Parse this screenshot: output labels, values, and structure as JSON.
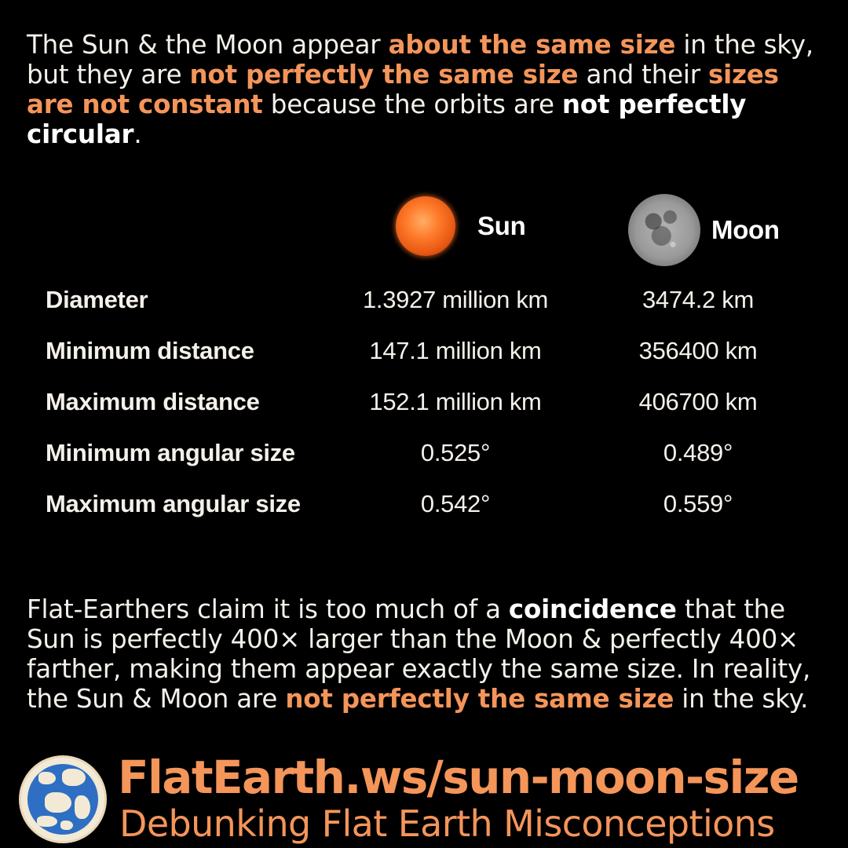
{
  "intro": {
    "segments": [
      {
        "text": "The Sun & the Moon appear ",
        "style": "normal"
      },
      {
        "text": "about the same size",
        "style": "orange"
      },
      {
        "text": " in the sky, but they are ",
        "style": "normal"
      },
      {
        "text": "not perfectly the same size",
        "style": "orange"
      },
      {
        "text": " and their ",
        "style": "normal"
      },
      {
        "text": "sizes are not constant",
        "style": "orange"
      },
      {
        "text": " because the orbits are ",
        "style": "normal"
      },
      {
        "text": "not perfectly circular",
        "style": "white"
      },
      {
        "text": ".",
        "style": "normal"
      }
    ]
  },
  "table": {
    "columns": {
      "sun": {
        "label": "Sun",
        "icon": "sun-icon"
      },
      "moon": {
        "label": "Moon",
        "icon": "moon-icon"
      }
    },
    "rows": [
      {
        "label": "Diameter",
        "sun": "1.3927 million km",
        "moon": "3474.2 km"
      },
      {
        "label": "Minimum distance",
        "sun": "147.1 million km",
        "moon": "356400 km"
      },
      {
        "label": "Maximum distance",
        "sun": "152.1 million km",
        "moon": "406700 km"
      },
      {
        "label": "Minimum angular size",
        "sun": "0.525°",
        "moon": "0.489°"
      },
      {
        "label": "Maximum angular size",
        "sun": "0.542°",
        "moon": "0.559°"
      }
    ]
  },
  "outro": {
    "segments": [
      {
        "text": "Flat-Earthers claim it is too much of a ",
        "style": "normal"
      },
      {
        "text": "coincidence",
        "style": "white"
      },
      {
        "text": " that the Sun is perfectly 400× larger than the Moon & perfectly 400× farther, making them appear exactly the same size. In reality, the Sun & Moon are ",
        "style": "normal"
      },
      {
        "text": "not perfectly the same size",
        "style": "orange"
      },
      {
        "text": " in the sky.",
        "style": "normal"
      }
    ]
  },
  "footer": {
    "url": "FlatEarth.ws/sun-moon-size",
    "tagline": "Debunking Flat Earth Misconceptions",
    "logo_icon": "globe-logo-icon"
  },
  "colors": {
    "background": "#000000",
    "accent": "#f4955a",
    "text": "#f4f0ea"
  }
}
